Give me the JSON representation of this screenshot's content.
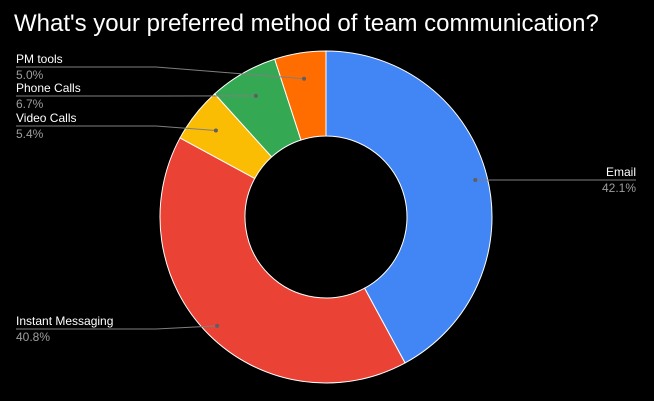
{
  "chart_data": {
    "type": "pie",
    "donut": true,
    "title": "What's your preferred method of team communication?",
    "categories": [
      "Email",
      "Instant Messaging",
      "Video Calls",
      "Phone Calls",
      "PM tools"
    ],
    "values": [
      42.1,
      40.8,
      5.4,
      6.7,
      5.0
    ],
    "percent_labels": [
      "42.1%",
      "40.8%",
      "5.4%",
      "6.7%",
      "5.0%"
    ],
    "colors": [
      "#4285f4",
      "#ea4335",
      "#fbbc04",
      "#34a853",
      "#ff6d01"
    ],
    "legend": "none",
    "label_style": "leader-lines"
  }
}
